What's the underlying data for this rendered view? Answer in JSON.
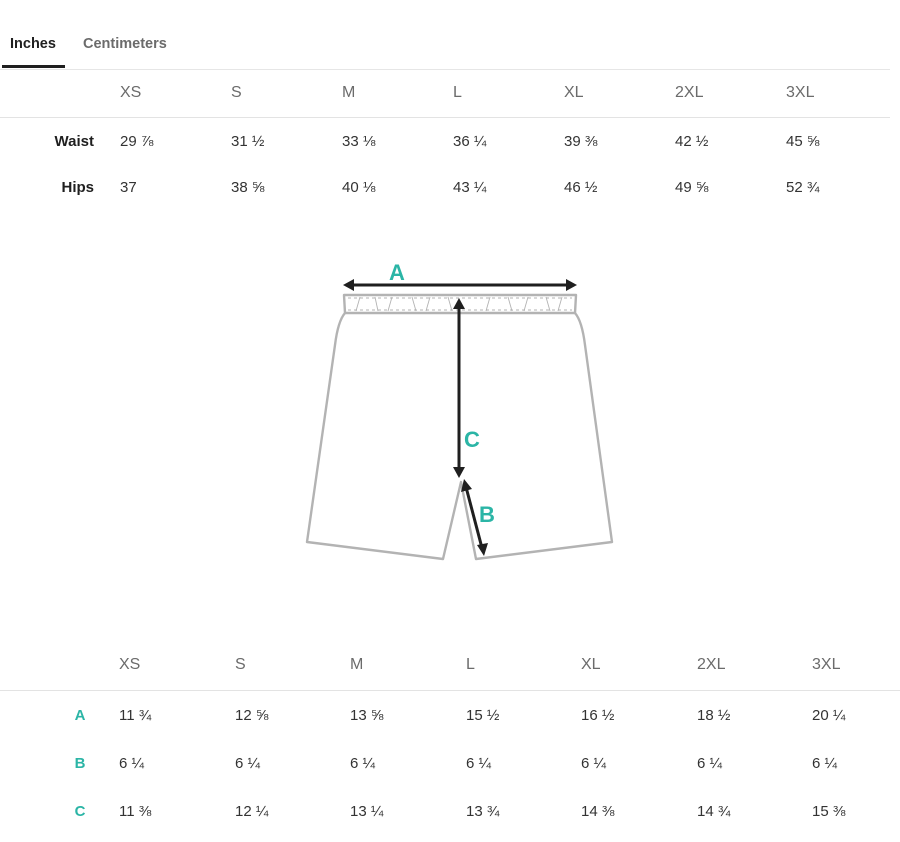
{
  "tabs": {
    "inches": "Inches",
    "centimeters": "Centimeters",
    "active": "Inches"
  },
  "sizes": [
    "XS",
    "S",
    "M",
    "L",
    "XL",
    "2XL",
    "3XL"
  ],
  "body_measurements": {
    "rows": [
      {
        "label": "Waist",
        "values": [
          "29 ⅞",
          "31 ½",
          "33 ⅛",
          "36 ¼",
          "39 ⅜",
          "42 ½",
          "45 ⅝"
        ]
      },
      {
        "label": "Hips",
        "values": [
          "37",
          "38 ⅝",
          "40 ⅛",
          "43 ¼",
          "46 ½",
          "49 ⅝",
          "52 ¾"
        ]
      }
    ]
  },
  "diagram": {
    "labels": {
      "a": "A",
      "b": "B",
      "c": "C"
    },
    "accent_color": "#2bb5a6",
    "outline_color": "#b3b3b3",
    "arrow_color": "#1f1f1f"
  },
  "product_measurements": {
    "rows": [
      {
        "label": "A",
        "values": [
          "11 ¾",
          "12 ⅝",
          "13 ⅝",
          "15 ½",
          "16 ½",
          "18 ½",
          "20 ¼"
        ]
      },
      {
        "label": "B",
        "values": [
          "6 ¼",
          "6 ¼",
          "6 ¼",
          "6 ¼",
          "6 ¼",
          "6 ¼",
          "6 ¼"
        ]
      },
      {
        "label": "C",
        "values": [
          "11 ⅜",
          "12 ¼",
          "13 ¼",
          "13 ¾",
          "14 ⅜",
          "14 ¾",
          "15 ⅜"
        ]
      }
    ]
  }
}
